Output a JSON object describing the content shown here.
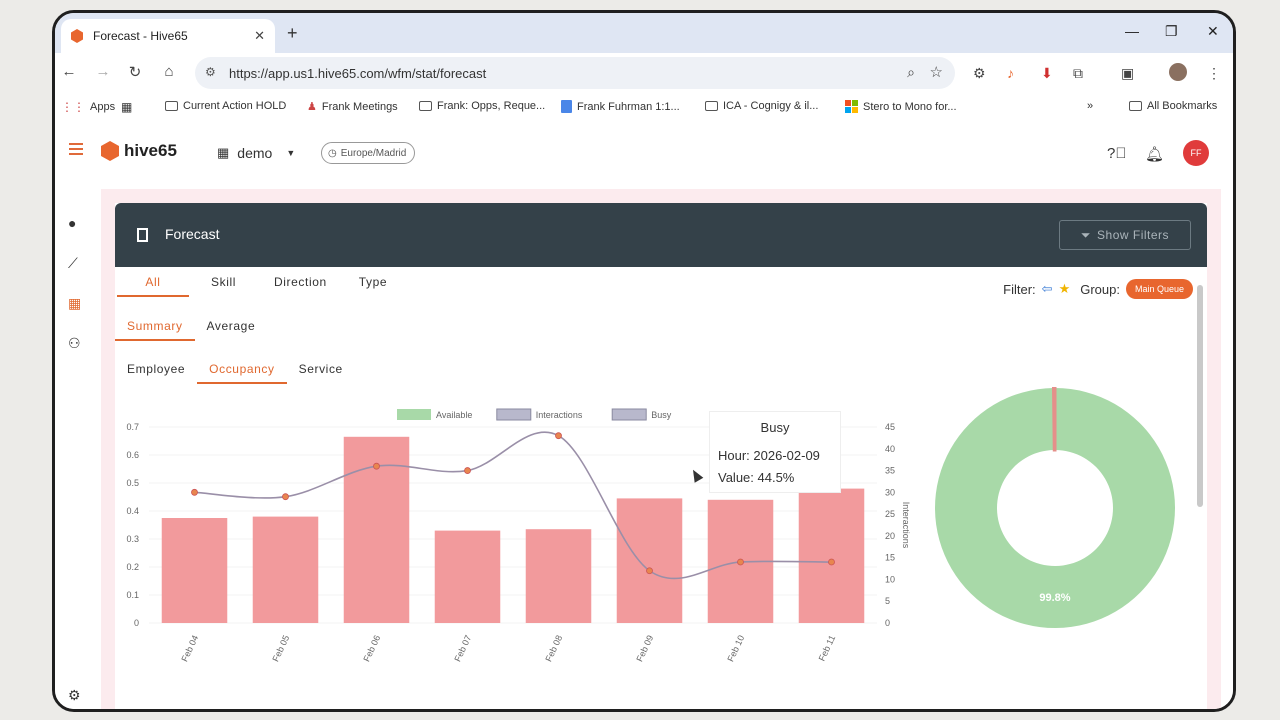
{
  "browser": {
    "tab_title": "Forecast - Hive65",
    "url": "https://app.us1.hive65.com/wfm/stat/forecast",
    "bookmarks": [
      "Apps",
      "Current Action HOLD",
      "Frank Meetings",
      "Frank: Opps, Reque...",
      "Frank Fuhrman 1:1...",
      "ICA  - Cognigy & il...",
      "Stero to Mono for...",
      "All Bookmarks"
    ]
  },
  "header": {
    "logo": "hive65",
    "org": "demo",
    "timezone": "Europe/Madrid",
    "avatar": "FF"
  },
  "card": {
    "title": "Forecast",
    "show_filters": "Show Filters",
    "tabs1": [
      "All",
      "Skill",
      "Direction",
      "Type"
    ],
    "tabs2": [
      "Summary",
      "Average"
    ],
    "tabs3": [
      "Employee",
      "Occupancy",
      "Service"
    ],
    "filter_label": "Filter:",
    "group_label": "Group:",
    "group_value": "Main Queue"
  },
  "tooltip": {
    "title": "Busy",
    "hour": "Hour: 2026-02-09",
    "value": "Value: 44.5%"
  },
  "chart_data": [
    {
      "type": "bar",
      "legend": [
        "Available",
        "Interactions",
        "Busy"
      ],
      "categories": [
        "Feb 04",
        "Feb 05",
        "Feb 06",
        "Feb 07",
        "Feb 08",
        "Feb 09",
        "Feb 10",
        "Feb 11"
      ],
      "series": [
        {
          "name": "Busy",
          "axis": "left",
          "values": [
            0.375,
            0.38,
            0.665,
            0.33,
            0.335,
            0.445,
            0.44,
            0.48
          ]
        },
        {
          "name": "Interactions",
          "axis": "right",
          "type": "line",
          "values": [
            30,
            29,
            36,
            35,
            43,
            12,
            14,
            14
          ]
        }
      ],
      "y_left_ticks": [
        "0",
        "0.1",
        "0.2",
        "0.3",
        "0.4",
        "0.5",
        "0.6",
        "0.7"
      ],
      "y_right_ticks": [
        "0",
        "5",
        "10",
        "15",
        "20",
        "25",
        "30",
        "35",
        "40",
        "45"
      ],
      "ylabel_right": "Interactions",
      "ylim_left": [
        0,
        0.7
      ],
      "ylim_right": [
        0,
        45
      ],
      "colors": {
        "busy": "#f29a9c",
        "available": "#a8d9a8",
        "interactions": "#b8b8cc"
      }
    },
    {
      "type": "pie",
      "labels": [
        "Available",
        "Busy"
      ],
      "values": [
        99.8,
        0.2
      ],
      "data_label": "99.8%",
      "colors": [
        "#a8d9a8",
        "#f29a9c"
      ]
    }
  ]
}
